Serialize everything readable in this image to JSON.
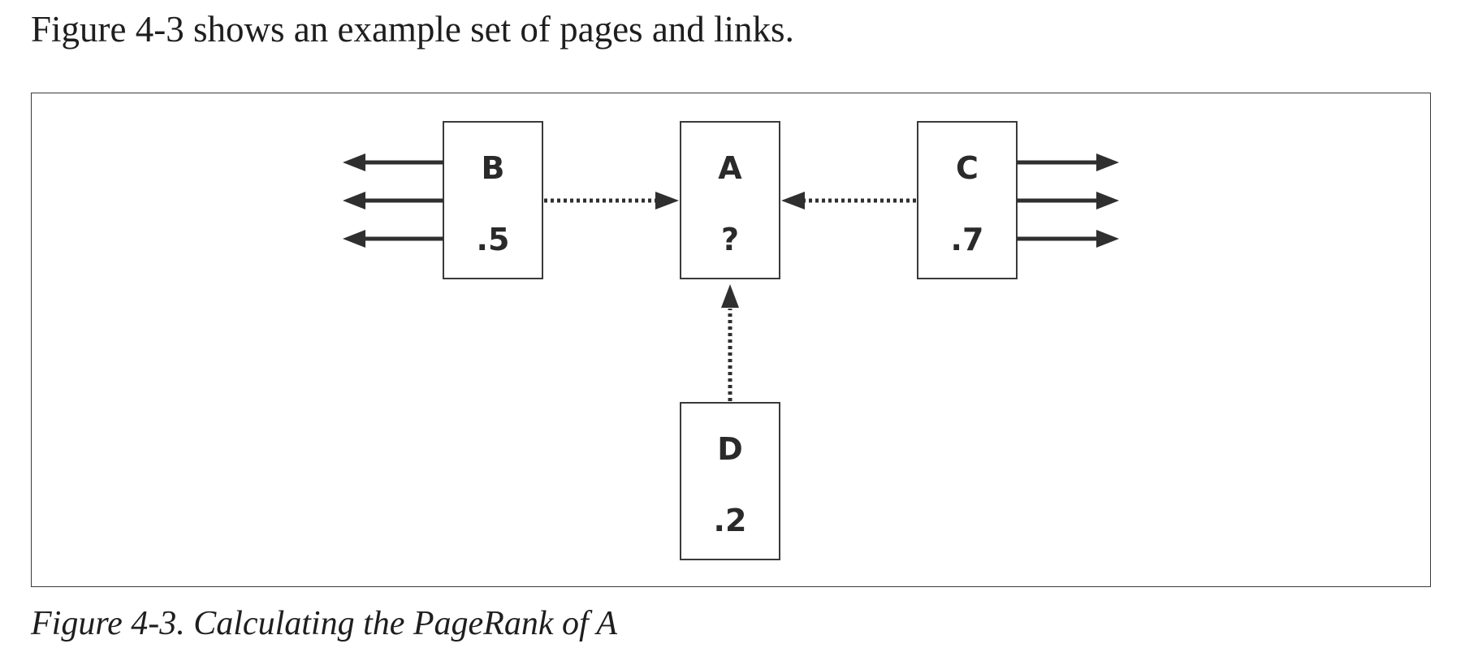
{
  "intro_text": "Figure 4-3 shows an example set of pages and links.",
  "caption": "Figure 4-3. Calculating the PageRank of A",
  "nodes": {
    "a": {
      "label": "A",
      "value": "?"
    },
    "b": {
      "label": "B",
      "value": ".5"
    },
    "c": {
      "label": "C",
      "value": ".7"
    },
    "d": {
      "label": "D",
      "value": ".2"
    }
  },
  "links": [
    {
      "from": "B",
      "to": "A",
      "style": "dotted"
    },
    {
      "from": "C",
      "to": "A",
      "style": "dotted"
    },
    {
      "from": "D",
      "to": "A",
      "style": "dotted"
    }
  ],
  "outgoing_links": {
    "B": 3,
    "C": 3
  },
  "colors": {
    "line": "#2f2f2f",
    "box_border": "#3a3a3a",
    "text": "#2a2a2a"
  }
}
